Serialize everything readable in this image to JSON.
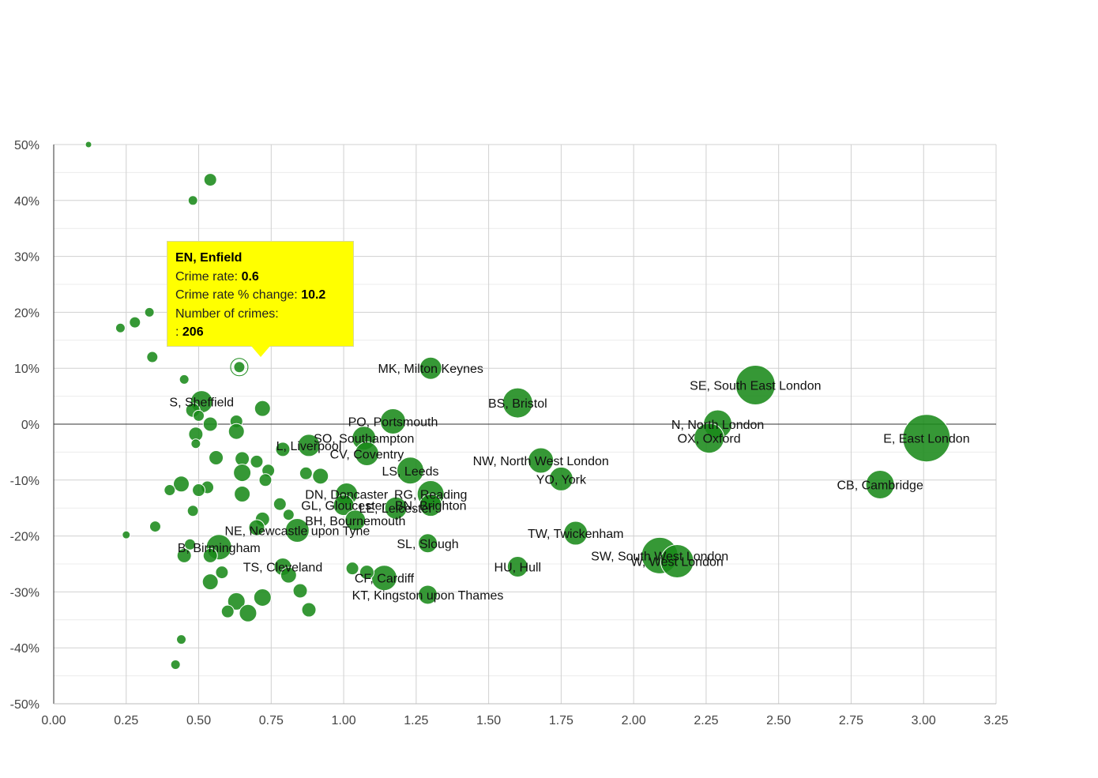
{
  "chart_data": {
    "type": "scatter",
    "xlim": [
      0,
      3.25
    ],
    "ylim": [
      -50,
      50
    ],
    "x_ticks": [
      "0.00",
      "0.25",
      "0.50",
      "0.75",
      "1.00",
      "1.25",
      "1.50",
      "1.75",
      "2.00",
      "2.25",
      "2.50",
      "2.75",
      "3.00",
      "3.25"
    ],
    "y_ticks": [
      "50%",
      "40%",
      "30%",
      "20%",
      "10%",
      "0%",
      "-10%",
      "-20%",
      "-30%",
      "-40%",
      "-50%"
    ],
    "grid": true,
    "points": [
      {
        "label": "MK, Milton Keynes",
        "x": 1.3,
        "y": 10.0,
        "size": 14
      },
      {
        "label": "SE, South East London",
        "x": 2.42,
        "y": 7.0,
        "size": 25
      },
      {
        "label": "BS, Bristol",
        "x": 1.6,
        "y": 3.8,
        "size": 19
      },
      {
        "label": "PO, Portsmouth",
        "x": 1.17,
        "y": 0.5,
        "size": 16
      },
      {
        "label": "N, North London",
        "x": 2.29,
        "y": 0.0,
        "size": 18
      },
      {
        "label": "OX, Oxford",
        "x": 2.26,
        "y": -2.5,
        "size": 19
      },
      {
        "label": "E, East London",
        "x": 3.01,
        "y": -2.5,
        "size": 30
      },
      {
        "label": "SO, Southampton",
        "x": 1.07,
        "y": -2.5,
        "size": 15
      },
      {
        "label": "S, Sheffield",
        "x": 0.51,
        "y": 4.0,
        "size": 14
      },
      {
        "label": "L, Liverpool",
        "x": 0.88,
        "y": -3.8,
        "size": 14
      },
      {
        "label": "CV, Coventry",
        "x": 1.08,
        "y": -5.3,
        "size": 15
      },
      {
        "label": "NW, North West London",
        "x": 1.68,
        "y": -6.5,
        "size": 16
      },
      {
        "label": "LS, Leeds",
        "x": 1.23,
        "y": -8.3,
        "size": 17
      },
      {
        "label": "YO, York",
        "x": 1.75,
        "y": -9.8,
        "size": 15
      },
      {
        "label": "CB, Cambridge",
        "x": 2.85,
        "y": -10.8,
        "size": 18
      },
      {
        "label": "DN, Doncaster",
        "x": 1.01,
        "y": -12.5,
        "size": 14
      },
      {
        "label": "RG, Reading",
        "x": 1.3,
        "y": -12.5,
        "size": 17
      },
      {
        "label": "GL, Gloucester",
        "x": 1.0,
        "y": -14.5,
        "size": 13
      },
      {
        "label": "BN, Brighton",
        "x": 1.3,
        "y": -14.5,
        "size": 14
      },
      {
        "label": "LE, Leicester",
        "x": 1.18,
        "y": -15.0,
        "size": 14
      },
      {
        "label": "BH, Bournemouth",
        "x": 1.04,
        "y": -17.2,
        "size": 13
      },
      {
        "label": "NE, Newcastle upon Tyne",
        "x": 0.84,
        "y": -19.0,
        "size": 15
      },
      {
        "label": "TW, Twickenham",
        "x": 1.8,
        "y": -19.5,
        "size": 15
      },
      {
        "label": "SL, Slough",
        "x": 1.29,
        "y": -21.3,
        "size": 12
      },
      {
        "label": "B, Birmingham",
        "x": 0.57,
        "y": -22.0,
        "size": 16
      },
      {
        "label": "SW, South West London",
        "x": 2.09,
        "y": -23.5,
        "size": 23
      },
      {
        "label": "W, West London",
        "x": 2.15,
        "y": -24.5,
        "size": 21
      },
      {
        "label": "HU, Hull",
        "x": 1.6,
        "y": -25.5,
        "size": 13
      },
      {
        "label": "TS, Cleveland",
        "x": 0.79,
        "y": -25.5,
        "size": 11
      },
      {
        "label": "CF, Cardiff",
        "x": 1.14,
        "y": -27.5,
        "size": 16
      },
      {
        "label": "KT, Kingston upon Thames",
        "x": 1.29,
        "y": -30.5,
        "size": 12
      },
      {
        "label": "EN, Enfield",
        "x": 0.64,
        "y": 10.2,
        "size": 7
      },
      {
        "label": "",
        "x": 0.12,
        "y": 50.0,
        "size": 4
      },
      {
        "label": "",
        "x": 0.54,
        "y": 43.7,
        "size": 8
      },
      {
        "label": "",
        "x": 0.48,
        "y": 40.0,
        "size": 6
      },
      {
        "label": "",
        "x": 0.33,
        "y": 20.0,
        "size": 6
      },
      {
        "label": "",
        "x": 0.28,
        "y": 18.2,
        "size": 7
      },
      {
        "label": "",
        "x": 0.23,
        "y": 17.2,
        "size": 6
      },
      {
        "label": "",
        "x": 0.34,
        "y": 12.0,
        "size": 7
      },
      {
        "label": "",
        "x": 0.45,
        "y": 8.0,
        "size": 6
      },
      {
        "label": "",
        "x": 0.72,
        "y": 2.8,
        "size": 10
      },
      {
        "label": "",
        "x": 0.48,
        "y": 2.5,
        "size": 9
      },
      {
        "label": "",
        "x": 0.5,
        "y": 1.5,
        "size": 7
      },
      {
        "label": "",
        "x": 0.63,
        "y": 0.5,
        "size": 8
      },
      {
        "label": "",
        "x": 0.54,
        "y": 0.0,
        "size": 9
      },
      {
        "label": "",
        "x": 0.63,
        "y": -1.3,
        "size": 10
      },
      {
        "label": "",
        "x": 0.49,
        "y": -1.8,
        "size": 9
      },
      {
        "label": "",
        "x": 0.49,
        "y": -3.5,
        "size": 6
      },
      {
        "label": "",
        "x": 0.79,
        "y": -4.5,
        "size": 9
      },
      {
        "label": "",
        "x": 0.56,
        "y": -6.0,
        "size": 9
      },
      {
        "label": "",
        "x": 0.65,
        "y": -6.2,
        "size": 9
      },
      {
        "label": "",
        "x": 0.7,
        "y": -6.7,
        "size": 8
      },
      {
        "label": "",
        "x": 0.74,
        "y": -8.3,
        "size": 8
      },
      {
        "label": "",
        "x": 0.65,
        "y": -8.7,
        "size": 11
      },
      {
        "label": "",
        "x": 0.87,
        "y": -8.8,
        "size": 8
      },
      {
        "label": "",
        "x": 0.92,
        "y": -9.3,
        "size": 10
      },
      {
        "label": "",
        "x": 0.73,
        "y": -10.0,
        "size": 8
      },
      {
        "label": "",
        "x": 0.44,
        "y": -10.7,
        "size": 10
      },
      {
        "label": "",
        "x": 0.53,
        "y": -11.3,
        "size": 8
      },
      {
        "label": "",
        "x": 0.4,
        "y": -11.8,
        "size": 7
      },
      {
        "label": "",
        "x": 0.5,
        "y": -11.8,
        "size": 8
      },
      {
        "label": "",
        "x": 0.65,
        "y": -12.5,
        "size": 10
      },
      {
        "label": "",
        "x": 0.78,
        "y": -14.3,
        "size": 8
      },
      {
        "label": "",
        "x": 0.48,
        "y": -15.5,
        "size": 7
      },
      {
        "label": "",
        "x": 0.81,
        "y": -16.2,
        "size": 7
      },
      {
        "label": "",
        "x": 0.72,
        "y": -17.0,
        "size": 9
      },
      {
        "label": "",
        "x": 0.35,
        "y": -18.3,
        "size": 7
      },
      {
        "label": "",
        "x": 0.7,
        "y": -18.5,
        "size": 10
      },
      {
        "label": "",
        "x": 0.25,
        "y": -19.8,
        "size": 5
      },
      {
        "label": "",
        "x": 0.47,
        "y": -21.5,
        "size": 7
      },
      {
        "label": "",
        "x": 0.45,
        "y": -23.5,
        "size": 9
      },
      {
        "label": "",
        "x": 0.54,
        "y": -23.5,
        "size": 9
      },
      {
        "label": "",
        "x": 0.58,
        "y": -26.5,
        "size": 8
      },
      {
        "label": "",
        "x": 0.81,
        "y": -27.0,
        "size": 10
      },
      {
        "label": "",
        "x": 1.03,
        "y": -25.8,
        "size": 8
      },
      {
        "label": "",
        "x": 1.08,
        "y": -26.5,
        "size": 9
      },
      {
        "label": "",
        "x": 0.54,
        "y": -28.2,
        "size": 10
      },
      {
        "label": "",
        "x": 0.85,
        "y": -29.8,
        "size": 9
      },
      {
        "label": "",
        "x": 0.72,
        "y": -31.0,
        "size": 11
      },
      {
        "label": "",
        "x": 0.63,
        "y": -31.7,
        "size": 11
      },
      {
        "label": "",
        "x": 0.6,
        "y": -33.5,
        "size": 8
      },
      {
        "label": "",
        "x": 0.67,
        "y": -33.8,
        "size": 11
      },
      {
        "label": "",
        "x": 0.88,
        "y": -33.2,
        "size": 9
      },
      {
        "label": "",
        "x": 0.44,
        "y": -38.5,
        "size": 6
      },
      {
        "label": "",
        "x": 0.42,
        "y": -43.0,
        "size": 6
      }
    ]
  },
  "tooltip": {
    "title": "EN, Enfield",
    "rate_label": "Crime rate:",
    "rate_value": "0.6",
    "change_label": "Crime rate % change:",
    "change_value": "10.2",
    "count_label": "Number of crimes:",
    "count_prefix": ":",
    "count_value": "206"
  },
  "colors": {
    "bubble": "#1a8a1a",
    "tooltip_bg": "#ffff00"
  }
}
